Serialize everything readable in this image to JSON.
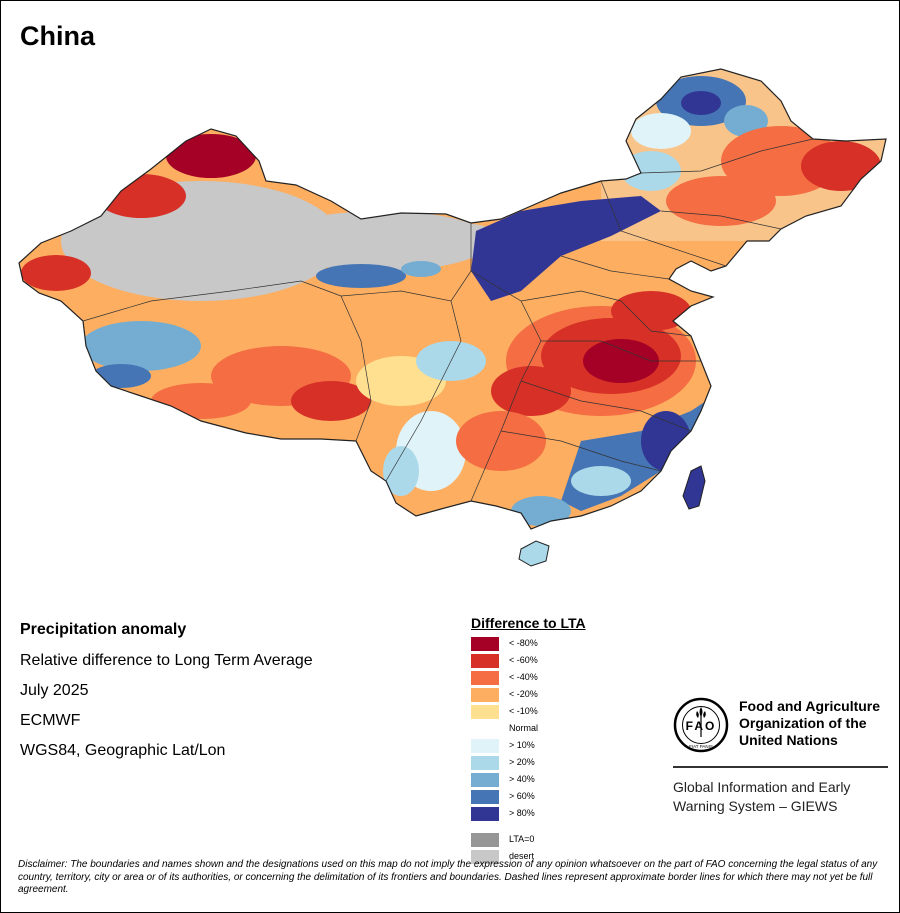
{
  "map": {
    "title": "China",
    "info": {
      "title": "Precipitation anomaly",
      "subtitle": "Relative difference to Long Term Average",
      "period": "July 2025",
      "source": "ECMWF",
      "projection": "WGS84, Geographic Lat/Lon"
    }
  },
  "legend": {
    "title": "Difference to LTA",
    "items": [
      {
        "label": "< -80%",
        "color": "#a50026"
      },
      {
        "label": "< -60%",
        "color": "#d73027"
      },
      {
        "label": "< -40%",
        "color": "#f46d43"
      },
      {
        "label": "< -20%",
        "color": "#fdae61"
      },
      {
        "label": "< -10%",
        "color": "#fee090"
      },
      {
        "label": "Normal",
        "color": "#ffffff"
      },
      {
        "label": "> 10%",
        "color": "#e0f3f8"
      },
      {
        "label": "> 20%",
        "color": "#abd9e9"
      },
      {
        "label": "> 40%",
        "color": "#74add1"
      },
      {
        "label": "> 60%",
        "color": "#4575b4"
      },
      {
        "label": "> 80%",
        "color": "#313695"
      },
      {
        "label": "LTA=0",
        "color": "#969696"
      },
      {
        "label": "desert",
        "color": "#c8c8c8"
      }
    ]
  },
  "organization": {
    "name": "Food and Agriculture Organization of the United Nations",
    "logo_text": "FAO",
    "logo_motto": "FIAT PANIS",
    "system": "Global Information and Early Warning System – GIEWS"
  },
  "disclaimer": "Disclaimer: The boundaries and names shown and the designations used on this map do not imply the expression of any opinion whatsoever on the part of FAO concerning the legal status of any country, territory, city or area or of its authorities, or concerning the delimitation of its frontiers and boundaries. Dashed lines represent approximate border lines for which there may not yet be full agreement."
}
